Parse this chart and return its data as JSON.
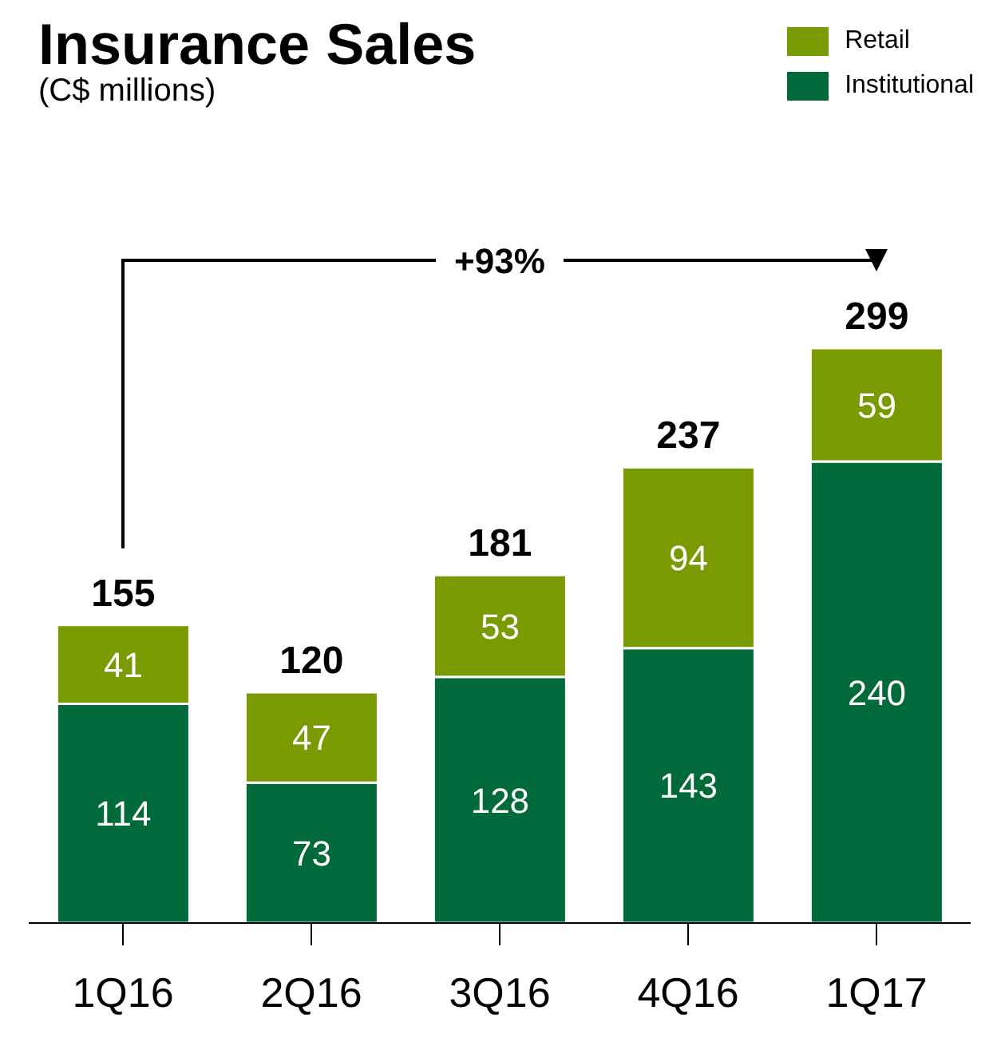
{
  "chart_data": {
    "type": "bar",
    "title": "Insurance Sales",
    "subtitle": "(C$ millions)",
    "categories": [
      "1Q16",
      "2Q16",
      "3Q16",
      "4Q16",
      "1Q17"
    ],
    "series": [
      {
        "name": "Institutional",
        "color": "#006a3a",
        "values": [
          114,
          73,
          128,
          143,
          240
        ]
      },
      {
        "name": "Retail",
        "color": "#7a9a01",
        "values": [
          41,
          47,
          53,
          94,
          59
        ]
      }
    ],
    "stacked": true,
    "data_labels": true,
    "totals": [
      "155",
      "120",
      "181",
      "237",
      "299"
    ],
    "annotations": [
      "+93%"
    ],
    "legend": "top right"
  }
}
